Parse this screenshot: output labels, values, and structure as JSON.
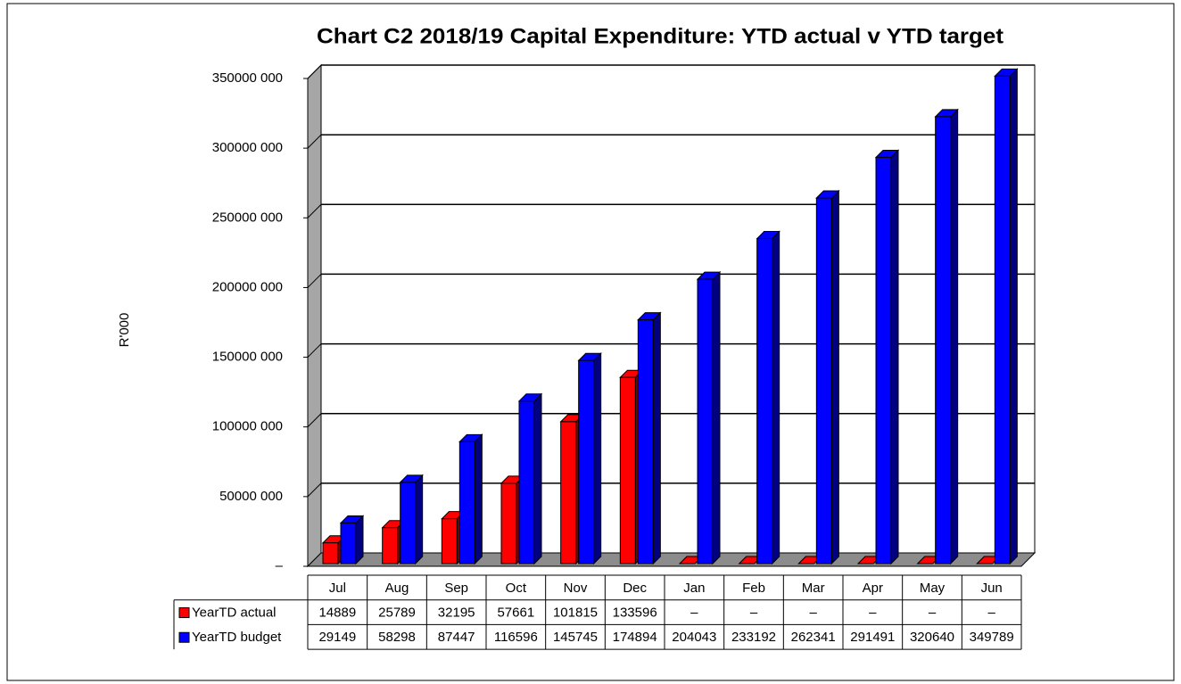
{
  "chart_data": {
    "type": "bar3d",
    "title": "Chart C2 2018/19  Capital Expenditure: YTD actual v YTD target",
    "y_label": "R'000",
    "categories": [
      "Jul",
      "Aug",
      "Sep",
      "Oct",
      "Nov",
      "Dec",
      "Jan",
      "Feb",
      "Mar",
      "Apr",
      "May",
      "Jun"
    ],
    "series": [
      {
        "name": "YearTD actual",
        "color": "#ff0000",
        "values": [
          14889000,
          25789000,
          32195000,
          57661000,
          101815000,
          133596000,
          0,
          0,
          0,
          0,
          0,
          0
        ],
        "value_labels": [
          "14889",
          "25789",
          "32195",
          "57661",
          "101815",
          "133596",
          "–",
          "–",
          "–",
          "–",
          "–",
          "–"
        ]
      },
      {
        "name": "YearTD budget",
        "color": "#0000ff",
        "values": [
          29149000,
          58298000,
          87447000,
          116596000,
          145745000,
          174894000,
          204043000,
          233192000,
          262341000,
          291491000,
          320640000,
          349789000
        ],
        "value_labels": [
          "29149",
          "58298",
          "87447",
          "116596",
          "145745",
          "174894",
          "204043",
          "233192",
          "262341",
          "291491",
          "320640",
          "349789"
        ]
      }
    ],
    "ylim": [
      0,
      350000000
    ],
    "yticks": [
      {
        "value": 0,
        "label": "–"
      },
      {
        "value": 50000000,
        "label": "50000 000"
      },
      {
        "value": 100000000,
        "label": "100000 000"
      },
      {
        "value": 150000000,
        "label": "150000 000"
      },
      {
        "value": 200000000,
        "label": "200000 000"
      },
      {
        "value": 250000000,
        "label": "250000 000"
      },
      {
        "value": 300000000,
        "label": "300000 000"
      },
      {
        "value": 350000000,
        "label": "350000 000"
      }
    ],
    "grid": true
  }
}
